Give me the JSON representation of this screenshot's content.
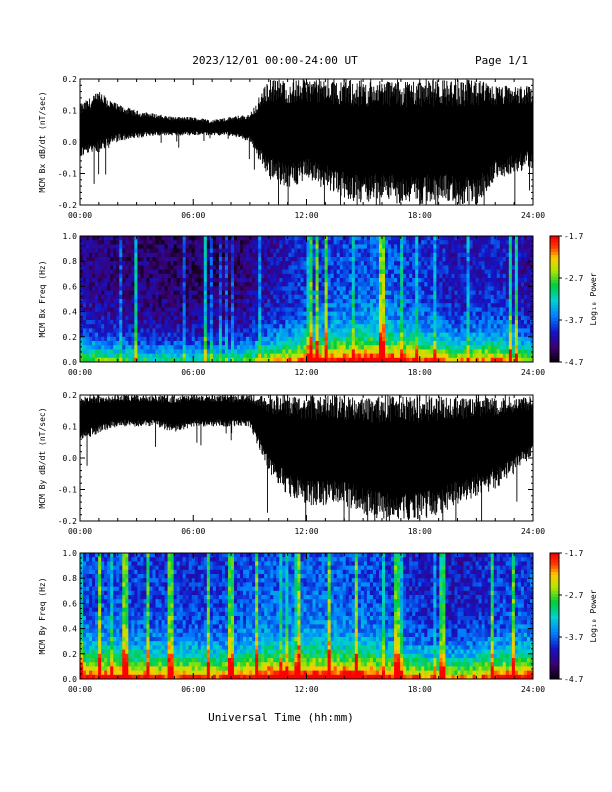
{
  "header": {
    "title": "2023/12/01  00:00-24:00 UT",
    "page": "Page 1/1"
  },
  "footer": {
    "xlabel": "Universal Time (hh:mm)"
  },
  "colors": {
    "trace": "#000000",
    "background": "#ffffff"
  },
  "chart_data": [
    {
      "type": "line",
      "id": "bx-dbdt",
      "ylabel": "MCM Bx dB/dt (nT/sec)",
      "ylim": [
        -0.2,
        0.2
      ],
      "yticks": [
        "-0.2",
        "-0.1",
        "0.0",
        "0.1",
        "0.2"
      ],
      "xlim": [
        0,
        24
      ],
      "xticks": [
        "00:00",
        "06:00",
        "12:00",
        "18:00",
        "24:00"
      ],
      "x_unit": "hours UT",
      "envelope": {
        "x": [
          0,
          1,
          2,
          3,
          4,
          5,
          6,
          7,
          8,
          9,
          10,
          11,
          12,
          13,
          14,
          15,
          16,
          17,
          18,
          19,
          20,
          21,
          22,
          23,
          24
        ],
        "upper": [
          0.12,
          0.16,
          0.12,
          0.1,
          0.09,
          0.08,
          0.08,
          0.07,
          0.08,
          0.09,
          0.2,
          0.2,
          0.2,
          0.2,
          0.2,
          0.2,
          0.2,
          0.2,
          0.2,
          0.2,
          0.2,
          0.2,
          0.18,
          0.18,
          0.18
        ],
        "lower": [
          -0.05,
          -0.04,
          0.0,
          0.01,
          0.02,
          0.02,
          0.02,
          0.02,
          0.02,
          0.0,
          -0.12,
          -0.15,
          -0.12,
          -0.15,
          -0.18,
          -0.2,
          -0.18,
          -0.2,
          -0.2,
          -0.18,
          -0.2,
          -0.2,
          -0.12,
          -0.1,
          -0.08
        ]
      }
    },
    {
      "type": "heatmap",
      "id": "bx-spectrogram",
      "ylabel": "MCM Bx Freq (Hz)",
      "ylim": [
        0,
        1.0
      ],
      "yticks": [
        "0.0",
        "0.2",
        "0.4",
        "0.6",
        "0.8",
        "1.0"
      ],
      "xlim": [
        0,
        24
      ],
      "xticks": [
        "00:00",
        "06:00",
        "12:00",
        "18:00",
        "24:00"
      ],
      "colorbar": {
        "label": "Log₁₀ Power",
        "range": [
          -4.7,
          -1.7
        ],
        "ticks": [
          "-1.7",
          "-2.7",
          "-3.7",
          "-4.7"
        ]
      },
      "activity": {
        "x": [
          0,
          2,
          4,
          6,
          8,
          10,
          12,
          14,
          16,
          18,
          20,
          22,
          24
        ],
        "level": [
          0.3,
          0.25,
          0.2,
          0.2,
          0.2,
          0.35,
          0.5,
          0.55,
          0.6,
          0.5,
          0.4,
          0.45,
          0.3
        ]
      },
      "bright_stripes_hours": [
        3.0,
        6.6,
        12.2,
        12.6,
        13.0,
        16.0,
        22.8,
        23.1
      ]
    },
    {
      "type": "line",
      "id": "by-dbdt",
      "ylabel": "MCM By dB/dt (nT/sec)",
      "ylim": [
        -0.2,
        0.2
      ],
      "yticks": [
        "-0.2",
        "-0.1",
        "0.0",
        "0.1",
        "0.2"
      ],
      "xlim": [
        0,
        24
      ],
      "xticks": [
        "00:00",
        "06:00",
        "12:00",
        "18:00",
        "24:00"
      ],
      "envelope": {
        "x": [
          0,
          1,
          2,
          3,
          4,
          5,
          6,
          7,
          8,
          9,
          10,
          11,
          12,
          13,
          14,
          15,
          16,
          17,
          18,
          19,
          20,
          21,
          22,
          23,
          24
        ],
        "upper": [
          0.2,
          0.2,
          0.2,
          0.2,
          0.2,
          0.2,
          0.2,
          0.2,
          0.2,
          0.2,
          0.2,
          0.2,
          0.2,
          0.2,
          0.2,
          0.2,
          0.2,
          0.2,
          0.2,
          0.2,
          0.2,
          0.2,
          0.2,
          0.2,
          0.2
        ],
        "lower": [
          0.05,
          0.08,
          0.1,
          0.1,
          0.1,
          0.08,
          0.1,
          0.1,
          0.1,
          0.1,
          -0.05,
          -0.12,
          -0.15,
          -0.15,
          -0.15,
          -0.18,
          -0.2,
          -0.2,
          -0.2,
          -0.18,
          -0.15,
          -0.12,
          -0.1,
          -0.05,
          0.0
        ]
      }
    },
    {
      "type": "heatmap",
      "id": "by-spectrogram",
      "ylabel": "MCM By Freq (Hz)",
      "ylim": [
        0,
        1.0
      ],
      "yticks": [
        "0.0",
        "0.2",
        "0.4",
        "0.6",
        "0.8",
        "1.0"
      ],
      "xlim": [
        0,
        24
      ],
      "xticks": [
        "00:00",
        "06:00",
        "12:00",
        "18:00",
        "24:00"
      ],
      "colorbar": {
        "label": "Log₁₀ Power",
        "range": [
          -4.7,
          -1.7
        ],
        "ticks": [
          "-1.7",
          "-2.7",
          "-3.7",
          "-4.7"
        ]
      },
      "activity": {
        "x": [
          0,
          2,
          4,
          6,
          8,
          10,
          12,
          14,
          16,
          18,
          20,
          22,
          24
        ],
        "level": [
          0.55,
          0.55,
          0.5,
          0.5,
          0.5,
          0.6,
          0.6,
          0.6,
          0.55,
          0.45,
          0.4,
          0.5,
          0.55
        ]
      },
      "bright_stripes_hours": [
        1.0,
        2.4,
        3.6,
        4.8,
        6.8,
        8.0,
        9.4,
        11.6,
        13.2,
        14.6,
        16.8,
        19.2,
        21.8,
        23.0
      ]
    }
  ]
}
